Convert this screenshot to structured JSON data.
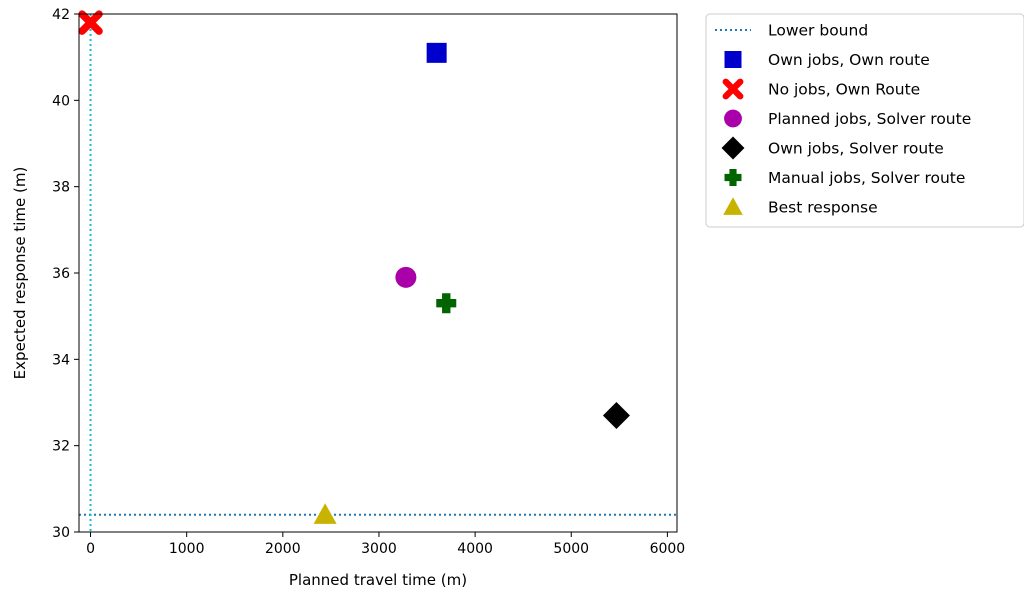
{
  "chart_data": {
    "type": "scatter",
    "title": "",
    "xlabel": "Planned travel time (m)",
    "ylabel": "Expected response time (m)",
    "xlim": [
      -120,
      6100
    ],
    "ylim": [
      30,
      42
    ],
    "xticks": [
      0,
      1000,
      2000,
      3000,
      4000,
      5000,
      6000
    ],
    "yticks": [
      30,
      32,
      34,
      36,
      38,
      40,
      42
    ],
    "grid": false,
    "legend_position": "outside-right",
    "lower_bound": {
      "name": "Lower bound",
      "x": 0,
      "y": 30.4,
      "style": "dotted",
      "horizontal_color": "#1f77b4",
      "vertical_color": "#17becf"
    },
    "series": [
      {
        "name": "Own jobs, Own route",
        "marker": "square",
        "color": "#0000cc",
        "x": 3600,
        "y": 41.1
      },
      {
        "name": "No jobs, Own Route",
        "marker": "x",
        "color": "#ff0000",
        "x": 0,
        "y": 41.8
      },
      {
        "name": "Planned jobs, Solver route",
        "marker": "circle",
        "color": "#aa00aa",
        "x": 3280,
        "y": 35.9
      },
      {
        "name": "Own jobs, Solver route",
        "marker": "diamond",
        "color": "#000000",
        "x": 5470,
        "y": 32.7
      },
      {
        "name": "Manual jobs, Solver route",
        "marker": "plus",
        "color": "#006400",
        "x": 3700,
        "y": 35.3
      },
      {
        "name": "Best response",
        "marker": "triangle",
        "color": "#c8b400",
        "x": 2440,
        "y": 30.4
      }
    ]
  }
}
